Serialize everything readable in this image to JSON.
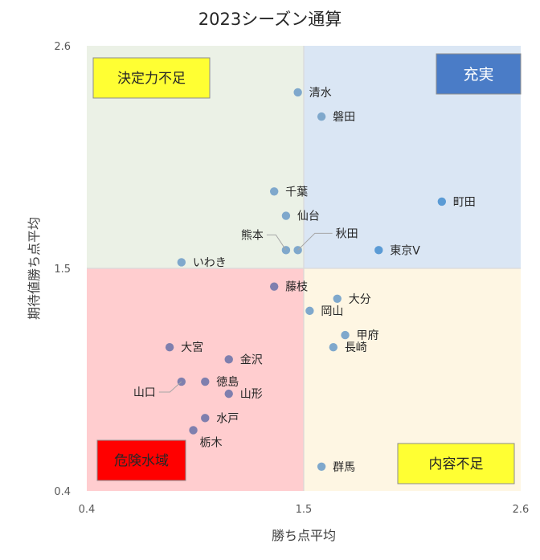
{
  "chart_data": {
    "type": "scatter",
    "title": "2023シーズン通算",
    "xlabel": "勝ち点平均",
    "ylabel": "期待値勝ち点平均",
    "xlim": [
      0.4,
      2.6
    ],
    "ylim": [
      0.4,
      2.6
    ],
    "x_ticks": [
      "0.4",
      "1.5",
      "2.6"
    ],
    "y_ticks": [
      "0.4",
      "1.5",
      "2.6"
    ],
    "threshold": {
      "x": 1.5,
      "y": 1.5
    },
    "grid": false,
    "quadrants": [
      {
        "name": "top-left",
        "label": "決定力不足",
        "fill": "#ebf1e6",
        "label_bg": "#ffff33",
        "label_color": "#262626"
      },
      {
        "name": "top-right",
        "label": "充実",
        "fill": "#dae6f4",
        "label_bg": "#4a7cc7",
        "label_color": "#ffffff"
      },
      {
        "name": "bottom-left",
        "label": "危険水域",
        "fill": "#ffcdcf",
        "label_bg": "#ff0000",
        "label_color": "#262626"
      },
      {
        "name": "bottom-right",
        "label": "内容不足",
        "fill": "#fef6e3",
        "label_bg": "#ffff33",
        "label_color": "#262626"
      }
    ],
    "colors": {
      "upper": "#7fa8cc",
      "lower": "#7f7fae",
      "strong": "#5b9bd5"
    },
    "points": [
      {
        "label": "清水",
        "x": 1.47,
        "y": 2.37,
        "group": "upper"
      },
      {
        "label": "磐田",
        "x": 1.59,
        "y": 2.25,
        "group": "upper"
      },
      {
        "label": "千葉",
        "x": 1.35,
        "y": 1.88,
        "group": "upper"
      },
      {
        "label": "町田",
        "x": 2.2,
        "y": 1.83,
        "group": "strong"
      },
      {
        "label": "仙台",
        "x": 1.41,
        "y": 1.76,
        "group": "upper"
      },
      {
        "label": "熊本",
        "x": 1.41,
        "y": 1.59,
        "group": "upper"
      },
      {
        "label": "秋田",
        "x": 1.47,
        "y": 1.59,
        "group": "upper"
      },
      {
        "label": "東京V",
        "x": 1.88,
        "y": 1.59,
        "group": "strong"
      },
      {
        "label": "いわき",
        "x": 0.88,
        "y": 1.53,
        "group": "upper"
      },
      {
        "label": "藤枝",
        "x": 1.35,
        "y": 1.41,
        "group": "lower"
      },
      {
        "label": "大分",
        "x": 1.67,
        "y": 1.35,
        "group": "upper"
      },
      {
        "label": "岡山",
        "x": 1.53,
        "y": 1.29,
        "group": "upper"
      },
      {
        "label": "甲府",
        "x": 1.71,
        "y": 1.17,
        "group": "upper"
      },
      {
        "label": "長崎",
        "x": 1.65,
        "y": 1.11,
        "group": "upper"
      },
      {
        "label": "大宮",
        "x": 0.82,
        "y": 1.11,
        "group": "lower"
      },
      {
        "label": "金沢",
        "x": 1.12,
        "y": 1.05,
        "group": "lower"
      },
      {
        "label": "山口",
        "x": 0.88,
        "y": 0.94,
        "group": "lower"
      },
      {
        "label": "徳島",
        "x": 1.0,
        "y": 0.94,
        "group": "lower"
      },
      {
        "label": "山形",
        "x": 1.12,
        "y": 0.88,
        "group": "lower"
      },
      {
        "label": "水戸",
        "x": 1.0,
        "y": 0.76,
        "group": "lower"
      },
      {
        "label": "栃木",
        "x": 0.94,
        "y": 0.7,
        "group": "lower"
      },
      {
        "label": "群馬",
        "x": 1.59,
        "y": 0.52,
        "group": "upper"
      }
    ]
  }
}
